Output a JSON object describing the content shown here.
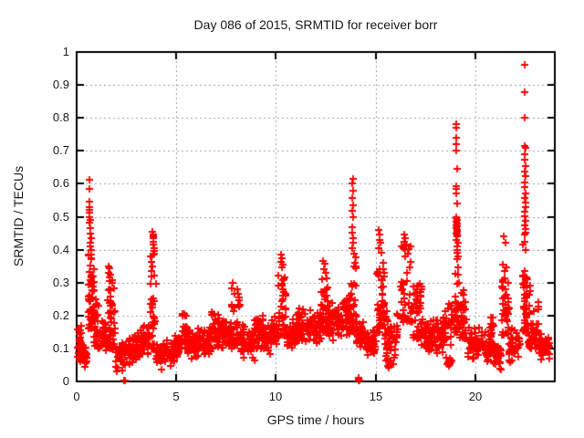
{
  "chart_data": {
    "type": "scatter",
    "title": "Day 086 of 2015, SRMTID for receiver borr",
    "xlabel": "GPS time / hours",
    "ylabel": "SRMTID / TECUs",
    "xlim": [
      0,
      24
    ],
    "ylim": [
      0,
      1
    ],
    "xticks": [
      0,
      5,
      10,
      15,
      20
    ],
    "xtick_labels": [
      "0",
      "5",
      "10",
      "15",
      "20"
    ],
    "yticks": [
      0,
      0.1,
      0.2,
      0.3,
      0.4,
      0.5,
      0.6,
      0.7,
      0.8,
      0.9,
      1
    ],
    "ytick_labels": [
      "0",
      "0.1",
      "0.2",
      "0.3",
      "0.4",
      "0.5",
      "0.6",
      "0.7",
      "0.8",
      "0.9",
      "1"
    ],
    "grid": true,
    "legend": "none",
    "marker": "plus",
    "marker_color": "#ff0000",
    "grid_color": "#9e9e9e",
    "axis_color": "#000000",
    "series": [
      {
        "name": "SRMTID",
        "seed": 20150086,
        "peak_points": [
          [
            0.64,
            0.613
          ],
          [
            0.66,
            0.585
          ],
          [
            0.63,
            0.545
          ],
          [
            0.65,
            0.53
          ],
          [
            0.64,
            0.52
          ],
          [
            0.66,
            0.512
          ],
          [
            0.65,
            0.5
          ],
          [
            0.67,
            0.49
          ],
          [
            0.63,
            0.483
          ],
          [
            0.68,
            0.465
          ],
          [
            0.7,
            0.45
          ],
          [
            0.72,
            0.435
          ],
          [
            0.69,
            0.42
          ],
          [
            0.73,
            0.4
          ],
          [
            0.75,
            0.385
          ],
          [
            0.71,
            0.37
          ],
          [
            1.62,
            0.35
          ],
          [
            1.65,
            0.344
          ],
          [
            1.6,
            0.331
          ],
          [
            1.68,
            0.324
          ],
          [
            1.64,
            0.315
          ],
          [
            3.82,
            0.455
          ],
          [
            3.85,
            0.445
          ],
          [
            3.84,
            0.44
          ],
          [
            3.87,
            0.434
          ],
          [
            3.83,
            0.425
          ],
          [
            3.86,
            0.415
          ],
          [
            3.88,
            0.405
          ],
          [
            3.9,
            0.395
          ],
          [
            3.85,
            0.385
          ],
          [
            10.28,
            0.385
          ],
          [
            10.32,
            0.374
          ],
          [
            10.25,
            0.364
          ],
          [
            10.35,
            0.354
          ],
          [
            10.3,
            0.345
          ],
          [
            12.38,
            0.365
          ],
          [
            12.45,
            0.356
          ],
          [
            12.42,
            0.342
          ],
          [
            12.5,
            0.33
          ],
          [
            13.86,
            0.615
          ],
          [
            13.84,
            0.6
          ],
          [
            13.87,
            0.578
          ],
          [
            13.85,
            0.556
          ],
          [
            13.86,
            0.535
          ],
          [
            13.84,
            0.518
          ],
          [
            13.88,
            0.5
          ],
          [
            13.85,
            0.468
          ],
          [
            13.83,
            0.452
          ],
          [
            13.87,
            0.435
          ],
          [
            13.86,
            0.42
          ],
          [
            13.82,
            0.405
          ],
          [
            15.18,
            0.46
          ],
          [
            15.22,
            0.445
          ],
          [
            15.2,
            0.43
          ],
          [
            15.25,
            0.42
          ],
          [
            15.15,
            0.405
          ],
          [
            15.28,
            0.39
          ],
          [
            16.42,
            0.445
          ],
          [
            16.48,
            0.435
          ],
          [
            16.45,
            0.425
          ],
          [
            16.55,
            0.415
          ],
          [
            16.38,
            0.405
          ],
          [
            19.05,
            0.78
          ],
          [
            19.07,
            0.77
          ],
          [
            19.05,
            0.74
          ],
          [
            19.06,
            0.72
          ],
          [
            19.05,
            0.7
          ],
          [
            19.08,
            0.645
          ],
          [
            19.05,
            0.592
          ],
          [
            19.07,
            0.585
          ],
          [
            19.06,
            0.57
          ],
          [
            19.08,
            0.54
          ],
          [
            19.04,
            0.5
          ],
          [
            19.06,
            0.495
          ],
          [
            19.08,
            0.49
          ],
          [
            19.05,
            0.485
          ],
          [
            19.09,
            0.48
          ],
          [
            19.07,
            0.475
          ],
          [
            19.1,
            0.47
          ],
          [
            19.06,
            0.465
          ],
          [
            19.11,
            0.46
          ],
          [
            19.08,
            0.455
          ],
          [
            19.05,
            0.45
          ],
          [
            19.12,
            0.445
          ],
          [
            19.09,
            0.44
          ],
          [
            19.07,
            0.43
          ],
          [
            19.13,
            0.42
          ],
          [
            19.1,
            0.41
          ],
          [
            19.08,
            0.4
          ],
          [
            19.12,
            0.39
          ],
          [
            19.14,
            0.38
          ],
          [
            19.11,
            0.37
          ],
          [
            19.15,
            0.345
          ],
          [
            21.45,
            0.44
          ],
          [
            21.52,
            0.42
          ],
          [
            21.4,
            0.355
          ],
          [
            21.55,
            0.345
          ],
          [
            21.48,
            0.335
          ],
          [
            22.5,
            0.962
          ],
          [
            22.49,
            0.878
          ],
          [
            22.51,
            0.8
          ],
          [
            22.5,
            0.715
          ],
          [
            22.52,
            0.708
          ],
          [
            22.49,
            0.69
          ],
          [
            22.51,
            0.672
          ],
          [
            22.53,
            0.655
          ],
          [
            22.5,
            0.638
          ],
          [
            22.52,
            0.622
          ],
          [
            22.48,
            0.605
          ],
          [
            22.51,
            0.59
          ],
          [
            22.53,
            0.572
          ],
          [
            22.5,
            0.558
          ],
          [
            22.52,
            0.542
          ],
          [
            22.54,
            0.528
          ],
          [
            22.49,
            0.515
          ],
          [
            22.51,
            0.502
          ],
          [
            22.53,
            0.488
          ],
          [
            22.5,
            0.475
          ],
          [
            22.52,
            0.462
          ],
          [
            22.55,
            0.452
          ],
          [
            22.48,
            0.445
          ],
          [
            22.75,
            0.29
          ],
          [
            22.78,
            0.275
          ],
          [
            22.73,
            0.262
          ]
        ],
        "zero_points": [
          [
            2.38,
            0.004
          ],
          [
            2.43,
            0.004
          ],
          [
            14.13,
            0.005
          ],
          [
            14.15,
            0.002
          ],
          [
            14.17,
            0.007
          ],
          [
            14.16,
            0.012
          ],
          [
            14.19,
            0.004
          ],
          [
            14.14,
            0.009
          ]
        ],
        "density_bands": [
          [
            0.02,
            0.28,
            0.03,
            0.19,
            32,
            "mid"
          ],
          [
            0.28,
            0.58,
            0.04,
            0.12,
            20,
            "mid"
          ],
          [
            0.58,
            0.88,
            0.16,
            0.42,
            48,
            "low"
          ],
          [
            0.88,
            1.18,
            0.1,
            0.28,
            28,
            "low"
          ],
          [
            1.18,
            1.48,
            0.08,
            0.2,
            30,
            "mid"
          ],
          [
            1.48,
            1.95,
            0.1,
            0.31,
            55,
            "low"
          ],
          [
            1.95,
            2.35,
            0.02,
            0.13,
            30,
            "mid"
          ],
          [
            2.35,
            2.78,
            0.04,
            0.14,
            28,
            "mid"
          ],
          [
            2.78,
            3.18,
            0.05,
            0.15,
            35,
            "mid"
          ],
          [
            3.18,
            3.68,
            0.07,
            0.18,
            42,
            "mid"
          ],
          [
            3.7,
            3.98,
            0.1,
            0.4,
            40,
            "low"
          ],
          [
            3.98,
            4.45,
            0.03,
            0.12,
            35,
            "mid"
          ],
          [
            4.45,
            4.88,
            0.04,
            0.13,
            32,
            "mid"
          ],
          [
            4.88,
            5.28,
            0.06,
            0.14,
            35,
            "mid"
          ],
          [
            5.28,
            5.52,
            0.1,
            0.22,
            22,
            "mid"
          ],
          [
            5.52,
            6.12,
            0.06,
            0.17,
            48,
            "mid"
          ],
          [
            6.12,
            6.78,
            0.07,
            0.18,
            48,
            "mid"
          ],
          [
            6.78,
            7.22,
            0.09,
            0.22,
            36,
            "mid"
          ],
          [
            7.22,
            7.78,
            0.09,
            0.19,
            42,
            "mid"
          ],
          [
            7.78,
            8.22,
            0.11,
            0.3,
            38,
            "low"
          ],
          [
            8.22,
            8.92,
            0.06,
            0.18,
            52,
            "mid"
          ],
          [
            8.92,
            9.38,
            0.09,
            0.21,
            40,
            "mid"
          ],
          [
            9.38,
            9.78,
            0.08,
            0.18,
            36,
            "mid"
          ],
          [
            9.78,
            10.12,
            0.1,
            0.2,
            30,
            "mid"
          ],
          [
            10.12,
            10.55,
            0.14,
            0.33,
            40,
            "low"
          ],
          [
            10.55,
            11.02,
            0.08,
            0.19,
            45,
            "mid"
          ],
          [
            11.02,
            11.68,
            0.1,
            0.23,
            52,
            "mid"
          ],
          [
            11.68,
            12.28,
            0.1,
            0.22,
            52,
            "mid"
          ],
          [
            12.28,
            12.62,
            0.15,
            0.32,
            34,
            "low"
          ],
          [
            12.62,
            13.38,
            0.12,
            0.25,
            62,
            "mid"
          ],
          [
            13.38,
            13.78,
            0.13,
            0.28,
            36,
            "mid"
          ],
          [
            13.78,
            14.02,
            0.15,
            0.4,
            30,
            "low"
          ],
          [
            14.05,
            14.48,
            0.08,
            0.2,
            32,
            "mid"
          ],
          [
            14.48,
            15.02,
            0.07,
            0.17,
            45,
            "mid"
          ],
          [
            15.05,
            15.45,
            0.15,
            0.37,
            40,
            "low"
          ],
          [
            15.45,
            16.12,
            0.07,
            0.22,
            50,
            "mid"
          ],
          [
            15.5,
            15.92,
            0.03,
            0.07,
            8,
            "mid"
          ],
          [
            16.25,
            16.85,
            0.18,
            0.42,
            45,
            "low"
          ],
          [
            16.85,
            17.32,
            0.13,
            0.3,
            40,
            "low"
          ],
          [
            17.32,
            18.38,
            0.08,
            0.2,
            78,
            "mid"
          ],
          [
            18.38,
            18.82,
            0.08,
            0.25,
            36,
            "mid"
          ],
          [
            18.55,
            18.82,
            0.04,
            0.08,
            8,
            "mid"
          ],
          [
            18.95,
            19.2,
            0.15,
            0.35,
            26,
            "low"
          ],
          [
            19.2,
            19.62,
            0.13,
            0.28,
            32,
            "low"
          ],
          [
            19.62,
            20.38,
            0.06,
            0.17,
            56,
            "mid"
          ],
          [
            20.38,
            20.92,
            0.05,
            0.16,
            40,
            "mid"
          ],
          [
            20.75,
            20.92,
            0.13,
            0.25,
            10,
            "mid"
          ],
          [
            20.92,
            21.32,
            0.03,
            0.12,
            30,
            "mid"
          ],
          [
            21.32,
            21.7,
            0.14,
            0.33,
            34,
            "low"
          ],
          [
            21.7,
            22.28,
            0.05,
            0.17,
            42,
            "mid"
          ],
          [
            22.4,
            22.62,
            0.15,
            0.44,
            42,
            "low"
          ],
          [
            22.62,
            23.22,
            0.1,
            0.25,
            45,
            "low"
          ],
          [
            23.22,
            23.75,
            0.06,
            0.16,
            40,
            "mid"
          ]
        ]
      }
    ]
  }
}
